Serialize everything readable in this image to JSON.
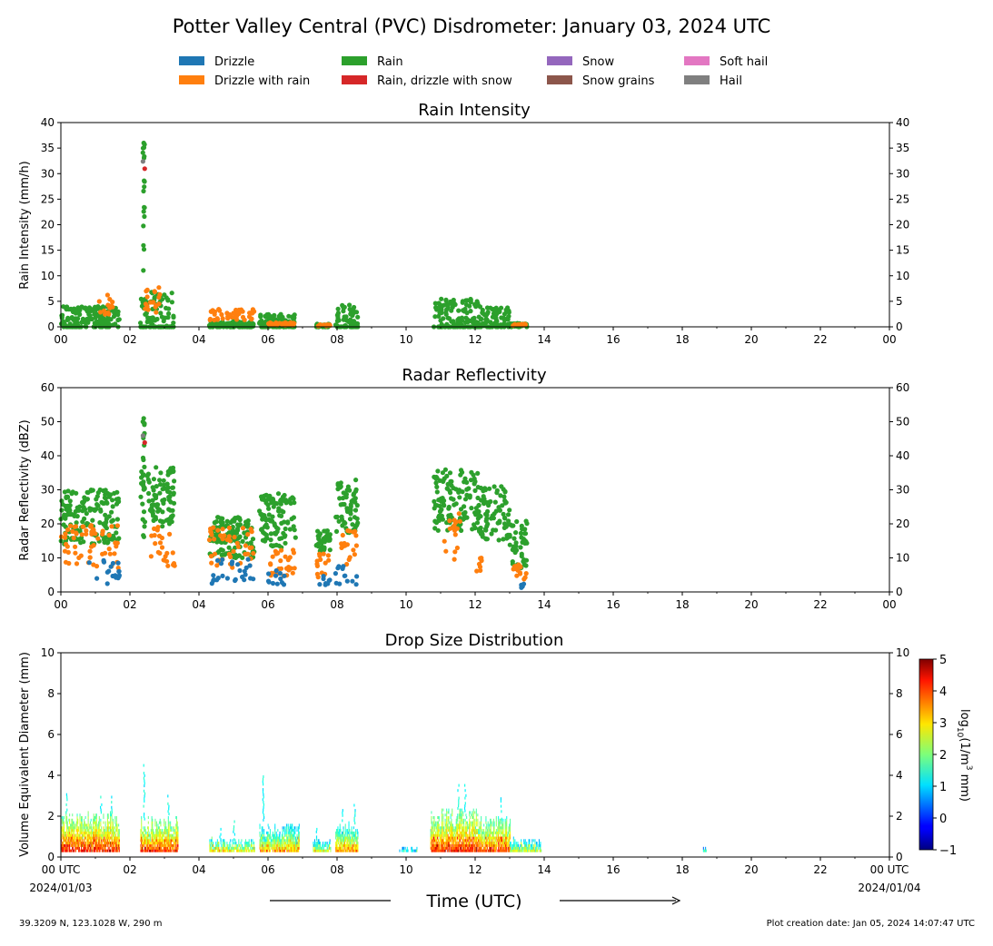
{
  "title": "Potter Valley Central (PVC) Disdrometer: January 03, 2024 UTC",
  "legend": {
    "items": [
      {
        "label": "Drizzle",
        "color": "#1f77b4"
      },
      {
        "label": "Drizzle with rain",
        "color": "#ff7f0e"
      },
      {
        "label": "Rain",
        "color": "#2ca02c"
      },
      {
        "label": "Rain, drizzle with snow",
        "color": "#d62728"
      },
      {
        "label": "Snow",
        "color": "#9467bd"
      },
      {
        "label": "Snow grains",
        "color": "#8c564b"
      },
      {
        "label": "Soft hail",
        "color": "#e377c2"
      },
      {
        "label": "Hail",
        "color": "#7f7f7f"
      }
    ]
  },
  "footer": {
    "location": "39.3209 N, 123.1028 W, 290 m",
    "creation": "Plot creation date: Jan 05, 2024 14:07:47 UTC"
  },
  "chart_data": [
    {
      "type": "scatter",
      "title": "Rain Intensity",
      "ylabel": "Rain Intensity (mm/h)",
      "xlim": [
        0,
        24
      ],
      "ylim": [
        0,
        40
      ],
      "yticks": [
        "0",
        "5",
        "10",
        "15",
        "20",
        "25",
        "30",
        "35",
        "40"
      ],
      "xticks": [
        "00",
        "02",
        "04",
        "06",
        "08",
        "10",
        "12",
        "14",
        "16",
        "18",
        "20",
        "22",
        "00"
      ],
      "clusters": [
        {
          "start": 0.0,
          "end": 1.7,
          "base": 1.5,
          "amp": 2.5,
          "ds": [
            [
              1.1,
              1.5,
              4.5
            ]
          ]
        },
        {
          "start": 2.3,
          "end": 3.3,
          "base": 2.0,
          "amp": 5.0,
          "ds": [
            [
              2.35,
              2.9,
              5.5
            ]
          ],
          "peak": [
            2.4,
            36
          ]
        },
        {
          "start": 4.3,
          "end": 5.6,
          "base": 0.3,
          "amp": 0.8,
          "ds": [
            [
              4.3,
              5.6,
              2.5
            ]
          ]
        },
        {
          "start": 5.75,
          "end": 6.8,
          "base": 0.6,
          "amp": 2.0,
          "ds": [
            [
              6.0,
              6.8,
              0.6
            ]
          ]
        },
        {
          "start": 7.4,
          "end": 7.8,
          "base": 0.2,
          "amp": 0.4,
          "ds": [
            [
              7.4,
              7.8,
              0.3
            ]
          ]
        },
        {
          "start": 7.95,
          "end": 8.6,
          "base": 1.5,
          "amp": 3.0,
          "ds": []
        },
        {
          "start": 10.8,
          "end": 12.1,
          "base": 2.0,
          "amp": 3.5,
          "ds": []
        },
        {
          "start": 12.1,
          "end": 13.0,
          "base": 1.5,
          "amp": 2.5,
          "ds": []
        },
        {
          "start": 13.0,
          "end": 13.5,
          "base": 0.3,
          "amp": 0.4,
          "ds": [
            [
              13.1,
              13.5,
              0.4
            ]
          ]
        }
      ]
    },
    {
      "type": "scatter",
      "title": "Radar Reflectivity",
      "ylabel": "Radar Reflectivity (dBZ)",
      "xlim": [
        0,
        24
      ],
      "ylim": [
        0,
        60
      ],
      "yticks": [
        "0",
        "10",
        "20",
        "30",
        "40",
        "50",
        "60"
      ],
      "xticks": [
        "00",
        "02",
        "04",
        "06",
        "08",
        "10",
        "12",
        "14",
        "16",
        "18",
        "20",
        "22",
        "00"
      ],
      "clusters": [
        {
          "start": 0.0,
          "end": 1.7,
          "base": 22,
          "amp": 8,
          "ds": [
            [
              0.0,
              1.7,
              14
            ]
          ],
          "dz": [
            [
              0.8,
              1.7,
              6
            ]
          ]
        },
        {
          "start": 2.3,
          "end": 3.3,
          "base": 28,
          "amp": 9,
          "ds": [
            [
              2.6,
              3.3,
              14
            ]
          ],
          "peak": [
            2.4,
            51
          ]
        },
        {
          "start": 4.3,
          "end": 5.6,
          "base": 16,
          "amp": 6,
          "ds": [
            [
              4.3,
              5.6,
              14
            ]
          ],
          "dz": [
            [
              4.3,
              5.6,
              6
            ]
          ]
        },
        {
          "start": 5.75,
          "end": 6.8,
          "base": 21,
          "amp": 8,
          "ds": [
            [
              6.0,
              6.8,
              9
            ]
          ],
          "dz": [
            [
              5.9,
              6.5,
              4
            ]
          ]
        },
        {
          "start": 7.4,
          "end": 7.8,
          "base": 15,
          "amp": 3,
          "ds": [
            [
              7.4,
              7.8,
              8
            ]
          ],
          "dz": [
            [
              7.4,
              7.8,
              3
            ]
          ]
        },
        {
          "start": 7.95,
          "end": 8.6,
          "base": 25,
          "amp": 8,
          "ds": [
            [
              8.1,
              8.6,
              13
            ]
          ],
          "dz": [
            [
              7.95,
              8.6,
              5
            ]
          ]
        },
        {
          "start": 10.8,
          "end": 12.1,
          "base": 27,
          "amp": 9,
          "ds": [
            [
              11.1,
              11.6,
              17
            ]
          ]
        },
        {
          "start": 12.1,
          "end": 13.0,
          "base": 23,
          "amp": 8,
          "ds": [
            [
              12.0,
              12.2,
              10
            ]
          ]
        },
        {
          "start": 13.0,
          "end": 13.5,
          "base": 14,
          "amp": 7,
          "ds": [
            [
              13.1,
              13.5,
              7
            ]
          ],
          "dz": [
            [
              13.3,
              13.5,
              3
            ]
          ]
        }
      ]
    },
    {
      "type": "heatmap",
      "title": "Drop Size Distribution",
      "ylabel": "Volume Equivalent Diameter (mm)",
      "xlabel": "Time (UTC)",
      "xlim": [
        0,
        24
      ],
      "ylim": [
        0,
        10
      ],
      "yticks": [
        "0",
        "2",
        "4",
        "6",
        "8",
        "10"
      ],
      "xticks": [
        "00 UTC",
        "02",
        "04",
        "06",
        "08",
        "10",
        "12",
        "14",
        "16",
        "18",
        "20",
        "22",
        "00 UTC"
      ],
      "xdates": {
        "start": "2024/01/03",
        "end": "2024/01/04"
      },
      "colorbar": {
        "label": "log",
        "sub": "10",
        "unit": "(1/m",
        "sup": "3",
        "unit_end": " mm)",
        "ticks": [
          "−1",
          "0",
          "1",
          "2",
          "3",
          "4",
          "5"
        ],
        "range": [
          -1,
          5
        ]
      },
      "segments": [
        {
          "start": 0.0,
          "end": 1.7,
          "top": 2.0,
          "intensity": 3.3,
          "spikes": [
            [
              0.15,
              3.5
            ],
            [
              1.15,
              3.0
            ],
            [
              1.45,
              3.0
            ]
          ]
        },
        {
          "start": 2.3,
          "end": 3.4,
          "top": 1.8,
          "intensity": 3.2,
          "spikes": [
            [
              2.4,
              4.5
            ],
            [
              3.1,
              3.0
            ]
          ]
        },
        {
          "start": 4.3,
          "end": 5.6,
          "top": 0.8,
          "intensity": 2.6,
          "spikes": [
            [
              4.6,
              1.5
            ],
            [
              5.0,
              1.8
            ]
          ]
        },
        {
          "start": 5.75,
          "end": 6.9,
          "top": 1.5,
          "intensity": 2.5,
          "spikes": [
            [
              5.85,
              4.0
            ]
          ]
        },
        {
          "start": 7.3,
          "end": 7.8,
          "top": 0.8,
          "intensity": 2.3,
          "spikes": [
            [
              7.4,
              1.5
            ]
          ]
        },
        {
          "start": 7.95,
          "end": 8.6,
          "top": 1.6,
          "intensity": 2.7,
          "spikes": [
            [
              8.15,
              2.5
            ],
            [
              8.5,
              2.5
            ]
          ]
        },
        {
          "start": 9.8,
          "end": 10.3,
          "top": 0.4,
          "intensity": 2.0,
          "spikes": []
        },
        {
          "start": 10.7,
          "end": 12.1,
          "top": 2.2,
          "intensity": 3.2,
          "spikes": [
            [
              11.5,
              3.5
            ],
            [
              11.7,
              3.5
            ]
          ]
        },
        {
          "start": 12.1,
          "end": 13.0,
          "top": 1.8,
          "intensity": 3.1,
          "spikes": [
            [
              12.75,
              3.0
            ]
          ]
        },
        {
          "start": 13.0,
          "end": 13.9,
          "top": 0.8,
          "intensity": 2.3,
          "spikes": []
        },
        {
          "start": 18.6,
          "end": 18.7,
          "top": 0.5,
          "intensity": 2.0,
          "spikes": []
        }
      ]
    }
  ]
}
